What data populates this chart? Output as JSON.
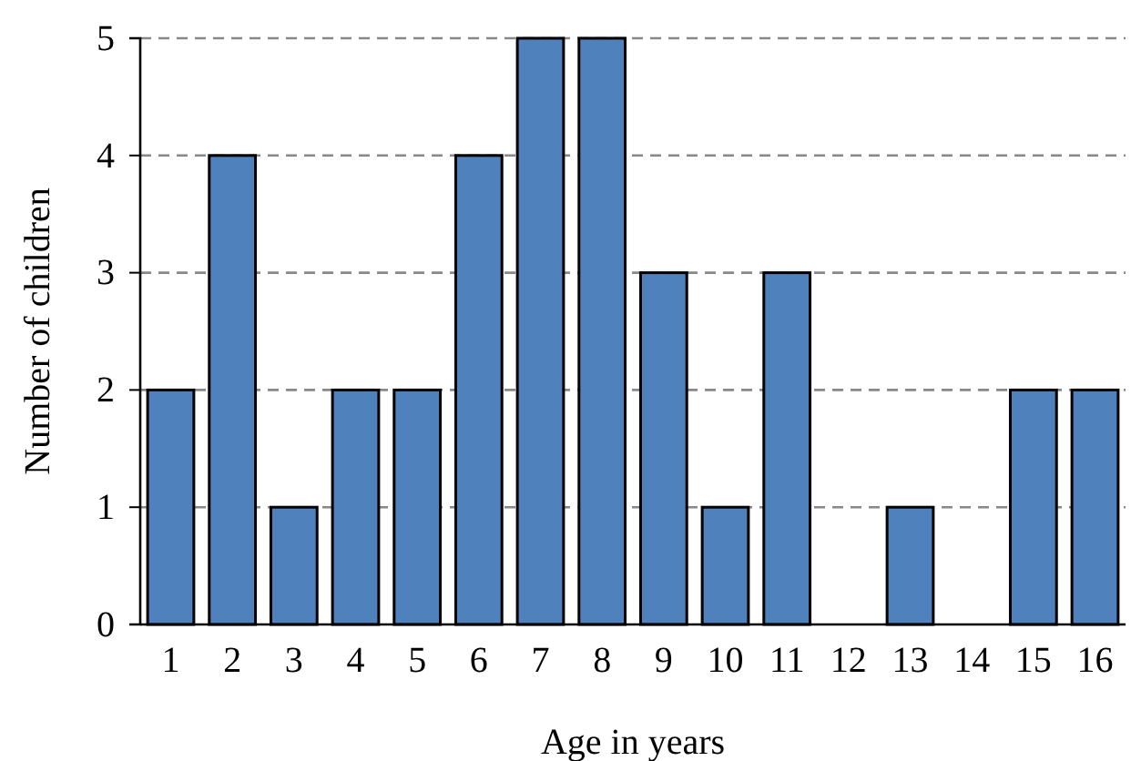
{
  "chart_data": {
    "type": "bar",
    "xlabel": "Age in years",
    "ylabel": "Number of children",
    "categories": [
      "1",
      "2",
      "3",
      "4",
      "5",
      "6",
      "7",
      "8",
      "9",
      "10",
      "11",
      "12",
      "13",
      "14",
      "15",
      "16"
    ],
    "values": [
      2,
      4,
      1,
      2,
      2,
      4,
      5,
      5,
      3,
      1,
      3,
      0,
      1,
      0,
      2,
      2
    ],
    "color": "#4f81bd",
    "ylim": [
      0,
      5
    ],
    "yticks": [
      0,
      1,
      2,
      3,
      4,
      5
    ],
    "grid": "y"
  }
}
